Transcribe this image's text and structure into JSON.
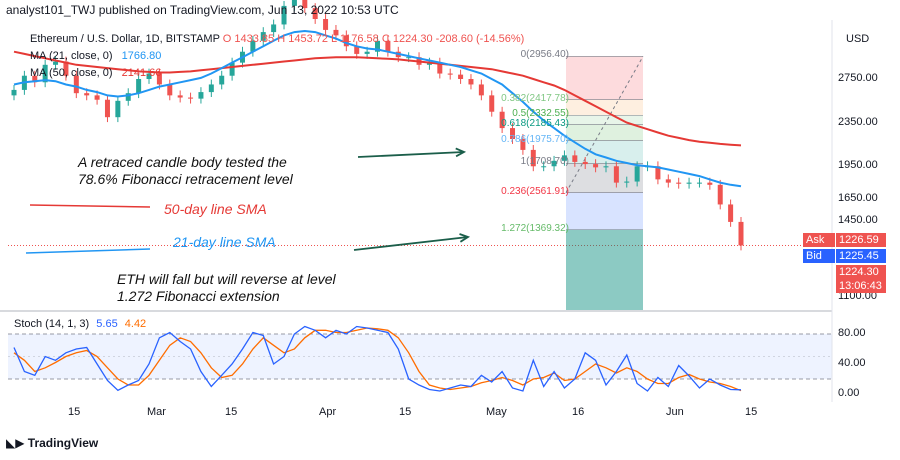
{
  "header": "analyst101_TWJ published on TradingView.com, Jun 13, 2022 10:53 UTC",
  "legend": {
    "symbol": "Ethereum / U.S. Dollar, 1D, BITSTAMP",
    "open": "O 1433.85",
    "high": "H 1453.72",
    "low": "L 1176.58",
    "close": "C 1224.30",
    "change": "-208.60 (-14.56%)",
    "ma21": "MA (21, close, 0)",
    "ma21_value": "1766.80",
    "ma50": "MA (50, close, 0)",
    "ma50_value": "2141.66",
    "stoch": "Stoch (14, 1, 3)",
    "stoch_k": "5.65",
    "stoch_d": "4.42"
  },
  "currency": "USD",
  "price_labels": [
    "2750.00",
    "2350.00",
    "1950.00",
    "1650.00",
    "1450.00",
    "1100.00"
  ],
  "stoch_labels": [
    "80.00",
    "40.00",
    "0.00"
  ],
  "x_labels": [
    "15",
    "Mar",
    "15",
    "Apr",
    "15",
    "May",
    "16",
    "Jun",
    "15"
  ],
  "tags": {
    "ask_label": "Ask",
    "ask_value": "1226.59",
    "bid_label": "Bid",
    "bid_value": "1225.45",
    "last_value": "1224.30",
    "countdown": "13:06:43"
  },
  "fib_levels": [
    {
      "label": "0(2956.40)",
      "color": "#787b86"
    },
    {
      "label": "0.236(2561.91)",
      "color": "#f23645"
    },
    {
      "label": "0.382(2417.78)",
      "color": "#81c784"
    },
    {
      "label": "0.5(2332.55)",
      "color": "#4caf50"
    },
    {
      "label": "0.618(2185.43)",
      "color": "#089981"
    },
    {
      "label": "0.786(1975.70)",
      "color": "#64b5f6"
    },
    {
      "label": "1(1708.70)",
      "color": "#787b86"
    },
    {
      "label": "1.272(1369.32)",
      "color": "#66bb6a"
    }
  ],
  "annotations": {
    "a1": [
      "A retraced candle body tested the",
      "78.6% Fibonacci retracement level"
    ],
    "a2": [
      "ETH will fall but will reverse at level",
      "1.272 Fibonacci extension"
    ],
    "sma50": "50-day line SMA",
    "sma21": "21-day line SMA"
  },
  "logo": "TradingView",
  "colors": {
    "up": "#26a69a",
    "down": "#ef5350",
    "ma21": "#2196f3",
    "ma50": "#e53935",
    "stoch_k": "#2962ff",
    "stoch_d": "#ff6d00"
  },
  "chart_data": {
    "type": "candlestick",
    "title": "Ethereum / U.S. Dollar, 1D, BITSTAMP",
    "y_axis_label": "USD",
    "close_series_approx": [
      2650,
      2780,
      2720,
      2880,
      2910,
      2780,
      2620,
      2600,
      2560,
      2400,
      2550,
      2620,
      2750,
      2800,
      2700,
      2600,
      2580,
      2570,
      2630,
      2700,
      2780,
      2900,
      3000,
      3100,
      3180,
      3250,
      3420,
      3500,
      3400,
      3300,
      3200,
      3150,
      3050,
      2980,
      3000,
      3100,
      3000,
      2950,
      2950,
      2880,
      2900,
      2800,
      2790,
      2750,
      2700,
      2600,
      2450,
      2300,
      2200,
      2100,
      1950,
      1950,
      2000,
      2050,
      1990,
      1970,
      1940,
      1950,
      1800,
      1810,
      1950,
      1950,
      1830,
      1800,
      1790,
      1800,
      1800,
      1780,
      1600,
      1440,
      1224.3
    ],
    "ma21_approx": [
      2700,
      2720,
      2730,
      2740,
      2730,
      2700,
      2680,
      2650,
      2630,
      2600,
      2590,
      2600,
      2620,
      2650,
      2680,
      2700,
      2720,
      2740,
      2760,
      2800,
      2850,
      2900,
      2950,
      3000,
      3050,
      3100,
      3150,
      3180,
      3190,
      3180,
      3150,
      3120,
      3080,
      3050,
      3030,
      3020,
      3000,
      2980,
      2960,
      2940,
      2920,
      2900,
      2880,
      2860,
      2830,
      2800,
      2750,
      2700,
      2620,
      2540,
      2450,
      2370,
      2300,
      2230,
      2170,
      2110,
      2060,
      2030,
      2000,
      1980,
      1960,
      1950,
      1940,
      1920,
      1900,
      1880,
      1860,
      1830,
      1800,
      1780,
      1766.8
    ],
    "ma50_approx": [
      3000,
      2980,
      2960,
      2940,
      2920,
      2900,
      2880,
      2870,
      2860,
      2850,
      2840,
      2830,
      2820,
      2815,
      2810,
      2810,
      2815,
      2820,
      2830,
      2840,
      2850,
      2860,
      2870,
      2880,
      2890,
      2900,
      2910,
      2920,
      2930,
      2940,
      2945,
      2950,
      2950,
      2950,
      2945,
      2940,
      2935,
      2930,
      2920,
      2910,
      2900,
      2890,
      2880,
      2870,
      2860,
      2850,
      2840,
      2820,
      2800,
      2780,
      2750,
      2720,
      2690,
      2650,
      2600,
      2550,
      2500,
      2450,
      2400,
      2350,
      2320,
      2290,
      2260,
      2230,
      2210,
      2190,
      2175,
      2165,
      2155,
      2148,
      2141.66
    ],
    "stoch_k_approx": [
      62,
      30,
      25,
      50,
      45,
      55,
      60,
      62,
      40,
      18,
      5,
      12,
      18,
      40,
      75,
      82,
      70,
      60,
      30,
      10,
      25,
      40,
      60,
      82,
      78,
      40,
      50,
      80,
      90,
      85,
      75,
      85,
      80,
      90,
      88,
      85,
      82,
      60,
      20,
      12,
      6,
      4,
      8,
      12,
      10,
      25,
      16,
      30,
      8,
      4,
      45,
      10,
      30,
      8,
      20,
      55,
      45,
      12,
      30,
      52,
      14,
      4,
      22,
      10,
      38,
      24,
      8,
      20,
      12,
      6,
      5.65
    ],
    "stoch_d_approx": [
      55,
      45,
      30,
      35,
      42,
      50,
      55,
      58,
      50,
      35,
      20,
      12,
      12,
      25,
      45,
      65,
      75,
      70,
      55,
      35,
      22,
      25,
      40,
      60,
      75,
      65,
      55,
      60,
      75,
      85,
      85,
      82,
      82,
      85,
      88,
      87,
      85,
      75,
      55,
      30,
      12,
      8,
      6,
      8,
      10,
      15,
      18,
      22,
      18,
      12,
      20,
      22,
      28,
      18,
      20,
      30,
      40,
      35,
      28,
      35,
      30,
      20,
      14,
      14,
      22,
      26,
      20,
      16,
      14,
      10,
      4.42
    ],
    "fibonacci": {
      "0": 2956.4,
      "0.236": 2561.91,
      "0.382": 2417.78,
      "0.5": 2332.55,
      "0.618": 2185.43,
      "0.786": 1975.7,
      "1": 1708.7,
      "1.272": 1369.32
    },
    "stoch_levels": [
      80,
      20
    ]
  }
}
